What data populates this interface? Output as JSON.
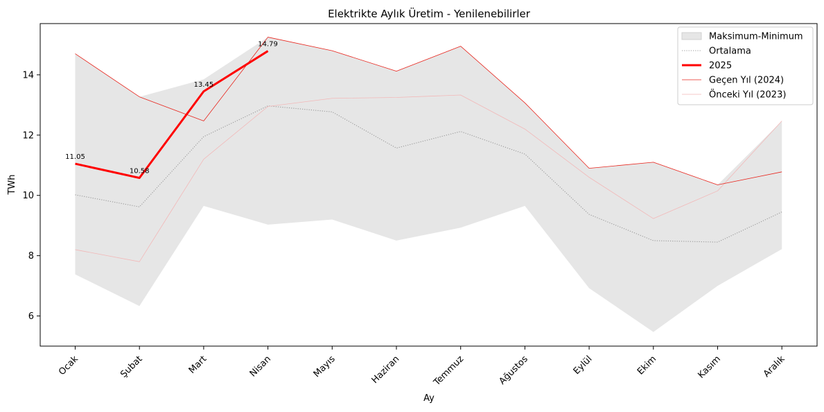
{
  "chart_data": {
    "type": "line",
    "title": "Elektrikte Aylık Üretim - Yenilenebilirler",
    "xlabel": "Ay",
    "ylabel": "TWh",
    "categories": [
      "Ocak",
      "Şubat",
      "Mart",
      "Nisan",
      "Mayıs",
      "Haziran",
      "Temmuz",
      "Ağustos",
      "Eylül",
      "Ekim",
      "Kasım",
      "Aralık"
    ],
    "ylim": [
      5.0,
      15.7
    ],
    "yticks": [
      "6",
      "8",
      "10",
      "12",
      "14"
    ],
    "grid": false,
    "legend_position": "top-right",
    "band": {
      "name": "Maksimum-Minimum",
      "color": "#e6e6e6",
      "max": [
        14.7,
        13.27,
        13.85,
        15.25,
        14.8,
        14.12,
        14.95,
        13.07,
        10.9,
        11.1,
        10.35,
        12.47
      ],
      "min": [
        7.38,
        6.33,
        9.65,
        9.03,
        9.2,
        8.5,
        8.93,
        9.65,
        6.92,
        5.47,
        7.0,
        8.22
      ]
    },
    "series": [
      {
        "name": "Ortalama",
        "color": "#999999",
        "style": "dotted",
        "width": 1.1,
        "values": [
          10.02,
          9.62,
          11.95,
          12.97,
          12.77,
          11.57,
          12.12,
          11.37,
          9.37,
          8.5,
          8.45,
          9.45
        ]
      },
      {
        "name": "Önceki Yıl (2023)",
        "color": "#f2b8b8",
        "style": "solid",
        "width": 0.8,
        "values": [
          8.2,
          7.8,
          11.2,
          12.95,
          13.22,
          13.25,
          13.33,
          12.2,
          10.6,
          9.23,
          10.15,
          12.47
        ]
      },
      {
        "name": "Geçen Yıl (2024)",
        "color": "#e8241c",
        "style": "solid",
        "width": 0.8,
        "values": [
          14.7,
          13.27,
          12.47,
          15.25,
          14.8,
          14.12,
          14.95,
          13.07,
          10.9,
          11.1,
          10.35,
          10.78
        ]
      },
      {
        "name": "2025",
        "color": "#ff0000",
        "style": "solid",
        "width": 3,
        "values": [
          11.05,
          10.58,
          13.45,
          14.79,
          null,
          null,
          null,
          null,
          null,
          null,
          null,
          null
        ],
        "labels": [
          "11.05",
          "10.58",
          "13.45",
          "14.79"
        ]
      }
    ],
    "legend": [
      "Maksimum-Minimum",
      "Ortalama",
      "2025",
      "Geçen Yıl (2024)",
      "Önceki Yıl (2023)"
    ]
  }
}
